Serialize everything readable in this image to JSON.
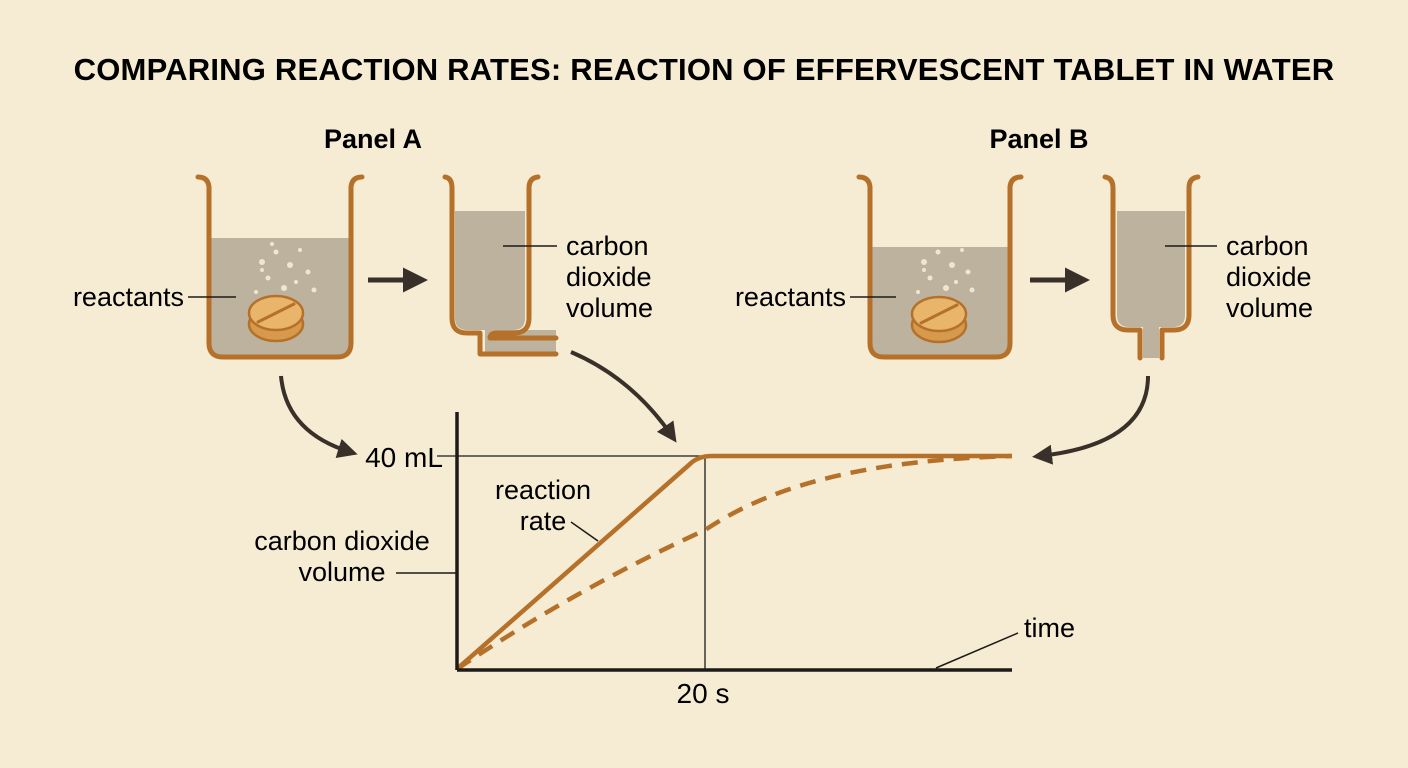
{
  "title": "COMPARING REACTION RATES: REACTION OF EFFERVESCENT TABLET IN WATER",
  "panel_a": {
    "heading": "Panel A",
    "reactants_label": "reactants",
    "gas_label_lines": [
      "carbon",
      "dioxide",
      "volume"
    ]
  },
  "panel_b": {
    "heading": "Panel B",
    "reactants_label": "reactants",
    "gas_label_lines": [
      "carbon",
      "dioxide",
      "volume"
    ]
  },
  "graph": {
    "y_tick_label": "40 mL",
    "x_tick_label": "20 s",
    "y_axis_label_lines": [
      "carbon dioxide",
      "volume"
    ],
    "x_axis_label": "time",
    "rate_label_lines": [
      "reaction",
      "rate"
    ]
  },
  "colors": {
    "background": "#f6ecd3",
    "outline": "#b5712a",
    "liquid": "#bdb29e",
    "tablet": "#e8b56a",
    "arrow": "#3a302a",
    "text": "#1d1b18"
  }
}
